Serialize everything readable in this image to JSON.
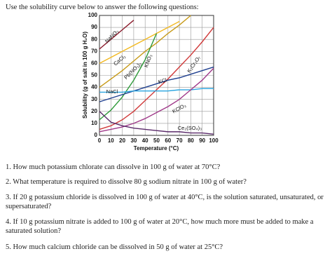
{
  "instructions": "Use the solubility curve below to answer the following questions:",
  "chart_data": {
    "type": "line",
    "y_label": "Solubility (g of salt in 100 g H₂O)",
    "x_label": "Temperature (°C)",
    "x": [
      0,
      10,
      20,
      30,
      40,
      50,
      60,
      70,
      80,
      90,
      100
    ],
    "xlim": [
      0,
      100
    ],
    "xticks": [
      0,
      10,
      20,
      30,
      40,
      50,
      60,
      70,
      80,
      90,
      100
    ],
    "ylim": [
      0,
      100
    ],
    "yticks": [
      0,
      10,
      20,
      30,
      40,
      50,
      60,
      70,
      80,
      90,
      100
    ],
    "grid": true,
    "series": [
      {
        "name": "NaNO₃",
        "color": "#8b1a2b",
        "values": [
          72,
          80,
          88,
          96,
          null,
          null,
          null,
          null,
          null,
          null,
          null
        ]
      },
      {
        "name": "CaCl₂",
        "color": "#f2b81f",
        "values": [
          60,
          65,
          70,
          75,
          80,
          85,
          90,
          95,
          null,
          null,
          null
        ]
      },
      {
        "name": "Pb(NO₃)₂",
        "color": "#c79a18",
        "values": [
          40,
          47,
          54,
          62,
          70,
          77,
          85,
          92,
          100,
          null,
          null
        ]
      },
      {
        "name": "KNO₃",
        "color": "#2f9a3a",
        "values": [
          13,
          21,
          32,
          46,
          63,
          85,
          null,
          null,
          null,
          null,
          null
        ]
      },
      {
        "name": "K₂Cr₂O₇",
        "color": "#d03a3a",
        "values": [
          5,
          8,
          13,
          20,
          29,
          38,
          47,
          57,
          67,
          78,
          90
        ]
      },
      {
        "name": "KCl",
        "color": "#1f3f8f",
        "values": [
          28,
          31,
          34,
          37,
          40,
          43,
          46,
          48,
          51,
          54,
          57
        ]
      },
      {
        "name": "NaCl",
        "color": "#2aa5e0",
        "values": [
          36,
          36,
          36,
          37,
          37,
          37,
          37,
          38,
          38,
          39,
          39
        ]
      },
      {
        "name": "KClO₃",
        "color": "#a03a8a",
        "values": [
          3,
          5,
          7,
          10,
          14,
          19,
          24,
          30,
          38,
          46,
          56
        ]
      },
      {
        "name": "Ce₂(SO₄)₃",
        "color": "#5a2a6a",
        "values": [
          20,
          11,
          8,
          6,
          5,
          4,
          3,
          3,
          2,
          2,
          1
        ]
      }
    ]
  },
  "questions": [
    "1. How much potassium chlorate can dissolve in 100 g of water at 70°C?",
    "2. What temperature is required to dissolve 80 g sodium nitrate in 100 g of water?",
    "3. If 20 g potassium chloride is dissolved in 100 g of water at 40°C, is the solution saturated, unsaturated, or supersaturated?",
    "4. If 10 g potassium nitrate is added to 100 g of water at 20°C, how much more must be added to make a saturated solution?",
    "5. How much calcium chloride can be dissolved in 50 g of water at 25°C?"
  ]
}
